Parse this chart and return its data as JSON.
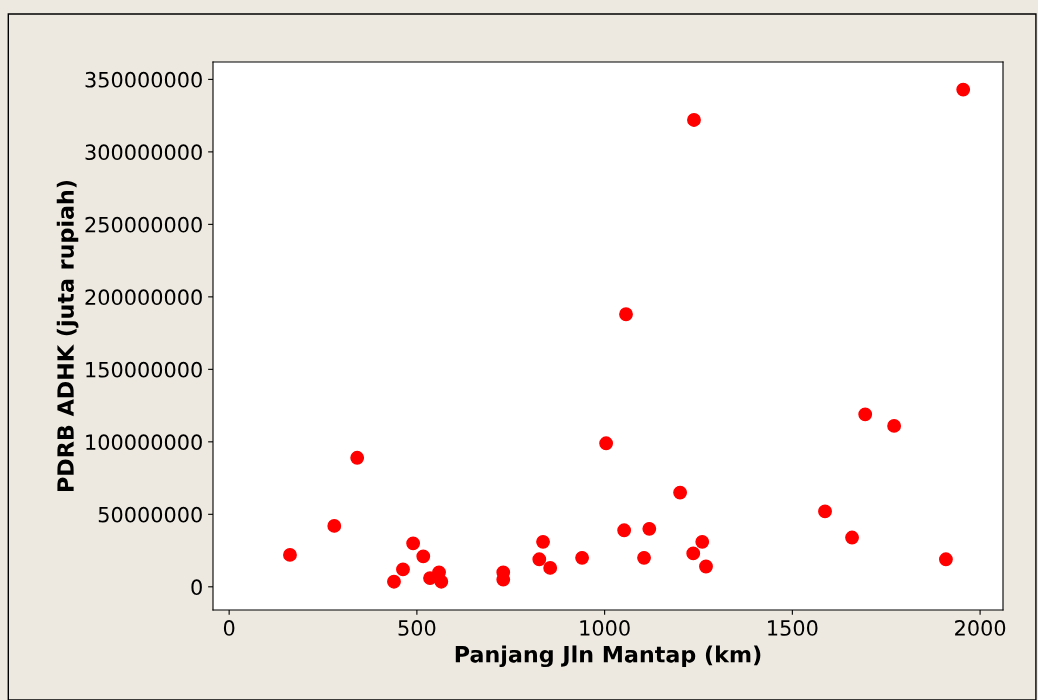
{
  "chart_data": {
    "type": "scatter",
    "xlabel": "Panjang Jln Mantap (km)",
    "ylabel": "PDRB ADHK (juta rupiah)",
    "xlim": [
      -43,
      2061
    ],
    "xticks": [
      0,
      500,
      1000,
      1500,
      2000
    ],
    "ylim": [
      -16000000,
      362000000
    ],
    "yticks": [
      0,
      50000000,
      100000000,
      150000000,
      200000000,
      250000000,
      300000000,
      350000000
    ],
    "grid": false,
    "marker": "circle",
    "series": [
      {
        "color": "#ff0000",
        "x": [
          162,
          280,
          341,
          439,
          463,
          490,
          517,
          535,
          559,
          565,
          730,
          730,
          826,
          836,
          855,
          940,
          1004,
          1052,
          1057,
          1105,
          1119,
          1201,
          1236,
          1238,
          1260,
          1270,
          1587,
          1659,
          1694,
          1771,
          1909,
          1955
        ],
        "values": [
          22000000,
          42000000,
          89000000,
          3500000,
          12000000,
          30000000,
          21000000,
          6000000,
          10000000,
          3500000,
          10000000,
          5000000,
          19000000,
          31000000,
          13000000,
          20000000,
          99000000,
          39000000,
          188000000,
          20000000,
          40000000,
          65000000,
          23000000,
          322000000,
          31000000,
          14000000,
          52000000,
          34000000,
          119000000,
          111000000,
          19000000,
          343000000
        ]
      }
    ]
  }
}
